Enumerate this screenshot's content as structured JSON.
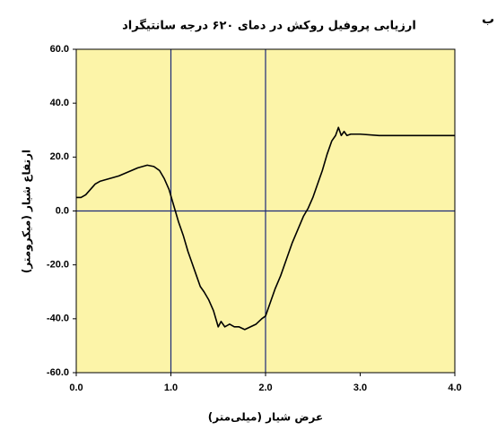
{
  "chart_data": {
    "type": "line",
    "title": "ارزیابی پروفیل روکش در دمای ۶۲۰ درجه سانتیگراد",
    "panel_label": "ب",
    "x_label": "عرض شیار (میلی‌متر)",
    "y_label": "ارتفاع شیار (میکرومتر)",
    "x": [
      0.0,
      0.05,
      0.1,
      0.15,
      0.2,
      0.25,
      0.3,
      0.35,
      0.45,
      0.55,
      0.65,
      0.75,
      0.82,
      0.88,
      0.93,
      0.98,
      1.03,
      1.08,
      1.13,
      1.18,
      1.22,
      1.27,
      1.31,
      1.35,
      1.4,
      1.45,
      1.5,
      1.53,
      1.57,
      1.62,
      1.67,
      1.72,
      1.78,
      1.84,
      1.9,
      1.96,
      2.0,
      2.05,
      2.1,
      2.16,
      2.22,
      2.28,
      2.34,
      2.4,
      2.45,
      2.5,
      2.55,
      2.6,
      2.65,
      2.7,
      2.74,
      2.77,
      2.8,
      2.83,
      2.86,
      2.9,
      2.95,
      3.0,
      3.2,
      3.5,
      3.8,
      4.0
    ],
    "values": [
      5,
      5,
      6,
      8,
      10,
      11,
      11.5,
      12,
      13,
      14.5,
      16,
      17,
      16.5,
      15,
      12,
      8,
      2,
      -4,
      -9,
      -15,
      -19,
      -24,
      -28,
      -30,
      -33,
      -37,
      -43,
      -41,
      -43,
      -42,
      -43,
      -43,
      -44,
      -43,
      -42,
      -40,
      -39,
      -34,
      -29,
      -24,
      -18,
      -12,
      -7,
      -2,
      1,
      5,
      10,
      15,
      21,
      26,
      28,
      31,
      28,
      29.5,
      28,
      28.5,
      28.5,
      28.5,
      28,
      28,
      28,
      28
    ],
    "color": "#000000",
    "xlim": [
      0,
      4
    ],
    "ylim": [
      -60,
      60
    ],
    "xticks": [
      {
        "value": 0,
        "label": "0.0"
      },
      {
        "value": 1,
        "label": "1.0"
      },
      {
        "value": 2,
        "label": "2.0"
      },
      {
        "value": 3,
        "label": "3.0"
      },
      {
        "value": 4,
        "label": "4.0"
      }
    ],
    "yticks": [
      {
        "value": 60,
        "label": "60.0"
      },
      {
        "value": 40,
        "label": "40.0"
      },
      {
        "value": 20,
        "label": "20.0"
      },
      {
        "value": 0,
        "label": "0.0"
      },
      {
        "value": -20,
        "label": "-20.0"
      },
      {
        "value": -40,
        "label": "-40.0"
      },
      {
        "value": -60,
        "label": "-60.0"
      }
    ],
    "grid_x": [
      1,
      2
    ],
    "grid_y": [
      0
    ],
    "grid_color": "#1c2a78",
    "plot_background": "#fcf4a8"
  }
}
